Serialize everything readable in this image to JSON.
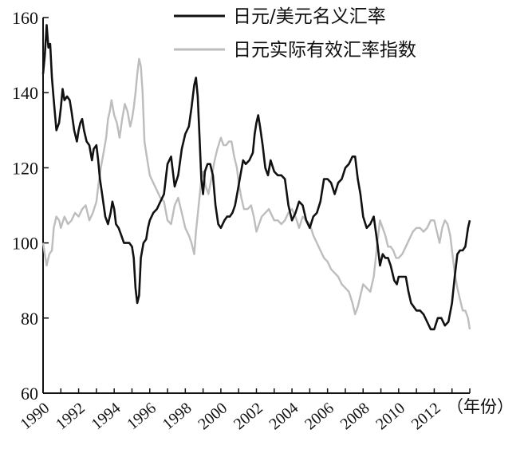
{
  "chart_data": {
    "type": "line",
    "title": "",
    "xlabel": "（年份）",
    "ylabel": "",
    "xlim": [
      1990,
      2014
    ],
    "ylim": [
      60,
      160
    ],
    "yticks": [
      60,
      80,
      100,
      120,
      140,
      160
    ],
    "xticks": [
      "1990",
      "1992",
      "1994",
      "1996",
      "1998",
      "2000",
      "2002",
      "2004",
      "2006",
      "2008",
      "2010",
      "2012"
    ],
    "legend_position": "top-right",
    "grid": false,
    "series": [
      {
        "name": "日元/美元名义汇率",
        "color": "#111111",
        "points": [
          [
            1990.0,
            145
          ],
          [
            1990.1,
            150
          ],
          [
            1990.2,
            158
          ],
          [
            1990.3,
            152
          ],
          [
            1990.4,
            153
          ],
          [
            1990.5,
            144
          ],
          [
            1990.6,
            138
          ],
          [
            1990.75,
            130
          ],
          [
            1990.9,
            132
          ],
          [
            1991.0,
            136
          ],
          [
            1991.1,
            141
          ],
          [
            1991.2,
            138
          ],
          [
            1991.35,
            139
          ],
          [
            1991.5,
            138
          ],
          [
            1991.6,
            135
          ],
          [
            1991.75,
            130
          ],
          [
            1991.9,
            127
          ],
          [
            1992.0,
            130
          ],
          [
            1992.1,
            132
          ],
          [
            1992.2,
            133
          ],
          [
            1992.3,
            130
          ],
          [
            1992.45,
            127
          ],
          [
            1992.6,
            126
          ],
          [
            1992.75,
            122
          ],
          [
            1992.85,
            125
          ],
          [
            1993.0,
            126
          ],
          [
            1993.1,
            122
          ],
          [
            1993.2,
            117
          ],
          [
            1993.35,
            112
          ],
          [
            1993.5,
            107
          ],
          [
            1993.65,
            105
          ],
          [
            1993.8,
            108
          ],
          [
            1993.9,
            111
          ],
          [
            1994.0,
            109
          ],
          [
            1994.1,
            105
          ],
          [
            1994.25,
            104
          ],
          [
            1994.4,
            102
          ],
          [
            1994.55,
            100
          ],
          [
            1994.7,
            100
          ],
          [
            1994.85,
            100
          ],
          [
            1995.0,
            99
          ],
          [
            1995.1,
            96
          ],
          [
            1995.2,
            88
          ],
          [
            1995.3,
            84
          ],
          [
            1995.4,
            86
          ],
          [
            1995.5,
            96
          ],
          [
            1995.65,
            100
          ],
          [
            1995.8,
            101
          ],
          [
            1995.9,
            104
          ],
          [
            1996.0,
            106
          ],
          [
            1996.2,
            108
          ],
          [
            1996.4,
            109
          ],
          [
            1996.6,
            111
          ],
          [
            1996.8,
            113
          ],
          [
            1997.0,
            121
          ],
          [
            1997.2,
            123
          ],
          [
            1997.4,
            115
          ],
          [
            1997.6,
            118
          ],
          [
            1997.8,
            125
          ],
          [
            1998.0,
            129
          ],
          [
            1998.2,
            131
          ],
          [
            1998.35,
            136
          ],
          [
            1998.5,
            142
          ],
          [
            1998.6,
            144
          ],
          [
            1998.7,
            139
          ],
          [
            1998.8,
            128
          ],
          [
            1998.9,
            117
          ],
          [
            1999.0,
            113
          ],
          [
            1999.1,
            119
          ],
          [
            1999.25,
            121
          ],
          [
            1999.4,
            121
          ],
          [
            1999.55,
            118
          ],
          [
            1999.7,
            110
          ],
          [
            1999.85,
            105
          ],
          [
            2000.0,
            104
          ],
          [
            2000.2,
            106
          ],
          [
            2000.35,
            107
          ],
          [
            2000.5,
            107
          ],
          [
            2000.65,
            108
          ],
          [
            2000.8,
            110
          ],
          [
            2000.95,
            114
          ],
          [
            2001.1,
            118
          ],
          [
            2001.25,
            122
          ],
          [
            2001.4,
            121
          ],
          [
            2001.6,
            122
          ],
          [
            2001.8,
            124
          ],
          [
            2001.9,
            129
          ],
          [
            2002.0,
            132
          ],
          [
            2002.1,
            134
          ],
          [
            2002.2,
            131
          ],
          [
            2002.35,
            126
          ],
          [
            2002.5,
            120
          ],
          [
            2002.65,
            118
          ],
          [
            2002.8,
            122
          ],
          [
            2003.0,
            119
          ],
          [
            2003.2,
            118
          ],
          [
            2003.4,
            118
          ],
          [
            2003.6,
            117
          ],
          [
            2003.8,
            110
          ],
          [
            2004.0,
            106
          ],
          [
            2004.2,
            108
          ],
          [
            2004.4,
            111
          ],
          [
            2004.6,
            110
          ],
          [
            2004.8,
            106
          ],
          [
            2005.0,
            104
          ],
          [
            2005.2,
            107
          ],
          [
            2005.4,
            108
          ],
          [
            2005.6,
            111
          ],
          [
            2005.8,
            117
          ],
          [
            2006.0,
            117
          ],
          [
            2006.2,
            116
          ],
          [
            2006.4,
            113
          ],
          [
            2006.6,
            116
          ],
          [
            2006.8,
            117
          ],
          [
            2007.0,
            120
          ],
          [
            2007.2,
            121
          ],
          [
            2007.4,
            123
          ],
          [
            2007.55,
            123
          ],
          [
            2007.7,
            117
          ],
          [
            2007.85,
            113
          ],
          [
            2008.0,
            107
          ],
          [
            2008.2,
            104
          ],
          [
            2008.4,
            105
          ],
          [
            2008.6,
            107
          ],
          [
            2008.8,
            100
          ],
          [
            2008.95,
            94
          ],
          [
            2009.1,
            97
          ],
          [
            2009.25,
            96
          ],
          [
            2009.4,
            96
          ],
          [
            2009.55,
            94
          ],
          [
            2009.75,
            90
          ],
          [
            2009.9,
            89
          ],
          [
            2010.0,
            91
          ],
          [
            2010.2,
            91
          ],
          [
            2010.4,
            91
          ],
          [
            2010.55,
            87
          ],
          [
            2010.7,
            84
          ],
          [
            2010.85,
            83
          ],
          [
            2011.0,
            82
          ],
          [
            2011.2,
            82
          ],
          [
            2011.4,
            81
          ],
          [
            2011.6,
            79
          ],
          [
            2011.8,
            77
          ],
          [
            2012.0,
            77
          ],
          [
            2012.2,
            80
          ],
          [
            2012.4,
            80
          ],
          [
            2012.6,
            78
          ],
          [
            2012.8,
            79
          ],
          [
            2013.0,
            84
          ],
          [
            2013.15,
            91
          ],
          [
            2013.3,
            97
          ],
          [
            2013.45,
            98
          ],
          [
            2013.6,
            98
          ],
          [
            2013.75,
            99
          ],
          [
            2013.9,
            104
          ],
          [
            2014.0,
            106
          ]
        ]
      },
      {
        "name": "日元实际有效汇率指数",
        "color": "#bdbdbd",
        "points": [
          [
            1990.0,
            100
          ],
          [
            1990.1,
            97
          ],
          [
            1990.2,
            94
          ],
          [
            1990.35,
            97
          ],
          [
            1990.5,
            98
          ],
          [
            1990.6,
            104
          ],
          [
            1990.75,
            107
          ],
          [
            1990.9,
            106
          ],
          [
            1991.0,
            104
          ],
          [
            1991.2,
            107
          ],
          [
            1991.4,
            105
          ],
          [
            1991.6,
            106
          ],
          [
            1991.8,
            108
          ],
          [
            1992.0,
            107
          ],
          [
            1992.2,
            109
          ],
          [
            1992.4,
            110
          ],
          [
            1992.6,
            106
          ],
          [
            1992.8,
            108
          ],
          [
            1993.0,
            111
          ],
          [
            1993.1,
            115
          ],
          [
            1993.25,
            120
          ],
          [
            1993.4,
            124
          ],
          [
            1993.55,
            128
          ],
          [
            1993.65,
            133
          ],
          [
            1993.75,
            135
          ],
          [
            1993.85,
            138
          ],
          [
            1994.0,
            134
          ],
          [
            1994.15,
            132
          ],
          [
            1994.3,
            128
          ],
          [
            1994.45,
            133
          ],
          [
            1994.6,
            137
          ],
          [
            1994.75,
            135
          ],
          [
            1994.9,
            131
          ],
          [
            1995.0,
            133
          ],
          [
            1995.1,
            136
          ],
          [
            1995.2,
            140
          ],
          [
            1995.3,
            145
          ],
          [
            1995.4,
            149
          ],
          [
            1995.5,
            147
          ],
          [
            1995.6,
            140
          ],
          [
            1995.7,
            127
          ],
          [
            1995.8,
            124
          ],
          [
            1995.9,
            121
          ],
          [
            1996.0,
            118
          ],
          [
            1996.2,
            116
          ],
          [
            1996.4,
            114
          ],
          [
            1996.6,
            112
          ],
          [
            1996.8,
            111
          ],
          [
            1997.0,
            106
          ],
          [
            1997.2,
            105
          ],
          [
            1997.4,
            110
          ],
          [
            1997.6,
            112
          ],
          [
            1997.8,
            108
          ],
          [
            1998.0,
            104
          ],
          [
            1998.2,
            102
          ],
          [
            1998.35,
            100
          ],
          [
            1998.5,
            97
          ],
          [
            1998.6,
            103
          ],
          [
            1998.75,
            110
          ],
          [
            1998.9,
            117
          ],
          [
            1999.0,
            119
          ],
          [
            1999.15,
            115
          ],
          [
            1999.3,
            113
          ],
          [
            1999.5,
            118
          ],
          [
            1999.65,
            122
          ],
          [
            1999.8,
            125
          ],
          [
            2000.0,
            128
          ],
          [
            2000.15,
            126
          ],
          [
            2000.3,
            126
          ],
          [
            2000.45,
            127
          ],
          [
            2000.6,
            127
          ],
          [
            2000.75,
            123
          ],
          [
            2000.9,
            120
          ],
          [
            2001.0,
            116
          ],
          [
            2001.15,
            112
          ],
          [
            2001.3,
            109
          ],
          [
            2001.5,
            109
          ],
          [
            2001.7,
            110
          ],
          [
            2001.85,
            107
          ],
          [
            2002.0,
            103
          ],
          [
            2002.15,
            105
          ],
          [
            2002.3,
            107
          ],
          [
            2002.5,
            108
          ],
          [
            2002.7,
            109
          ],
          [
            2003.0,
            106
          ],
          [
            2003.2,
            106
          ],
          [
            2003.4,
            105
          ],
          [
            2003.6,
            106
          ],
          [
            2003.8,
            108
          ],
          [
            2004.0,
            109
          ],
          [
            2004.2,
            107
          ],
          [
            2004.4,
            104
          ],
          [
            2004.6,
            107
          ],
          [
            2004.8,
            106
          ],
          [
            2005.0,
            105
          ],
          [
            2005.2,
            102
          ],
          [
            2005.4,
            100
          ],
          [
            2005.6,
            98
          ],
          [
            2005.8,
            96
          ],
          [
            2006.0,
            95
          ],
          [
            2006.2,
            93
          ],
          [
            2006.4,
            92
          ],
          [
            2006.6,
            91
          ],
          [
            2006.8,
            89
          ],
          [
            2007.0,
            88
          ],
          [
            2007.2,
            87
          ],
          [
            2007.4,
            84
          ],
          [
            2007.55,
            81
          ],
          [
            2007.7,
            83
          ],
          [
            2007.85,
            86
          ],
          [
            2008.0,
            89
          ],
          [
            2008.2,
            88
          ],
          [
            2008.4,
            87
          ],
          [
            2008.6,
            91
          ],
          [
            2008.8,
            100
          ],
          [
            2008.95,
            106
          ],
          [
            2009.1,
            104
          ],
          [
            2009.25,
            102
          ],
          [
            2009.4,
            99
          ],
          [
            2009.55,
            99
          ],
          [
            2009.7,
            98
          ],
          [
            2009.85,
            96
          ],
          [
            2010.0,
            96
          ],
          [
            2010.2,
            97
          ],
          [
            2010.4,
            99
          ],
          [
            2010.6,
            101
          ],
          [
            2010.8,
            103
          ],
          [
            2011.0,
            104
          ],
          [
            2011.2,
            104
          ],
          [
            2011.4,
            103
          ],
          [
            2011.6,
            104
          ],
          [
            2011.8,
            106
          ],
          [
            2012.0,
            106
          ],
          [
            2012.15,
            103
          ],
          [
            2012.3,
            100
          ],
          [
            2012.45,
            104
          ],
          [
            2012.6,
            106
          ],
          [
            2012.75,
            105
          ],
          [
            2012.9,
            102
          ],
          [
            2013.0,
            98
          ],
          [
            2013.15,
            92
          ],
          [
            2013.3,
            88
          ],
          [
            2013.45,
            85
          ],
          [
            2013.6,
            82
          ],
          [
            2013.75,
            82
          ],
          [
            2013.9,
            80
          ],
          [
            2014.0,
            77
          ]
        ]
      }
    ]
  }
}
